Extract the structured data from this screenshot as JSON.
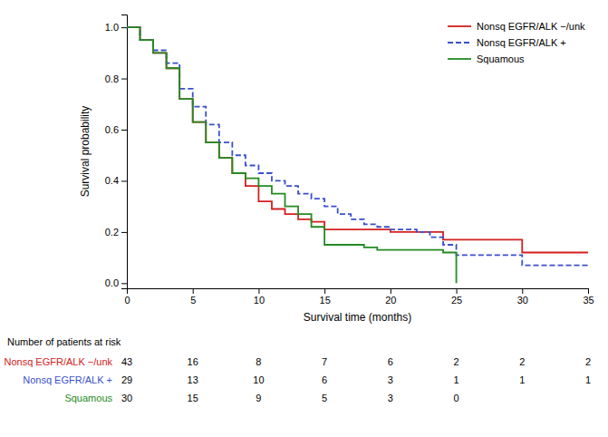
{
  "chart_data": {
    "type": "step",
    "xlabel": "Survival time (months)",
    "ylabel": "Survival probability",
    "xlim": [
      0,
      35
    ],
    "ylim": [
      -0.02,
      1.05
    ],
    "xticks": [
      0,
      5,
      10,
      15,
      20,
      25,
      30,
      35
    ],
    "yticks": [
      {
        "value": 0.0,
        "label": "0.0"
      },
      0.2,
      0.4,
      0.6,
      0.8,
      {
        "value": 1.0,
        "label": "1.0"
      }
    ],
    "grid": false,
    "legend": "upper right",
    "risk_label": "Number of patients at risk",
    "risk_times": [
      0,
      5,
      10,
      15,
      20,
      25,
      30,
      35
    ],
    "series": [
      {
        "name": "Nonsq EGFR/ALK −/unk",
        "color": "#d42020",
        "line_style": "solid",
        "x": [
          0,
          1,
          2,
          3,
          4,
          5,
          6,
          7,
          8,
          9,
          10,
          11,
          12,
          13,
          14,
          15,
          16,
          17,
          18,
          19,
          20,
          21,
          22,
          23,
          24,
          25,
          30,
          31,
          35
        ],
        "values": [
          1.0,
          0.95,
          0.9,
          0.84,
          0.72,
          0.63,
          0.55,
          0.49,
          0.43,
          0.38,
          0.32,
          0.29,
          0.27,
          0.25,
          0.24,
          0.21,
          0.21,
          0.21,
          0.21,
          0.21,
          0.2,
          0.2,
          0.2,
          0.2,
          0.17,
          0.17,
          0.12,
          0.12,
          0.12
        ],
        "at_risk": [
          43,
          16,
          8,
          7,
          6,
          2,
          2,
          2
        ]
      },
      {
        "name": "Nonsq EGFR/ALK +",
        "color": "#3a4fcd",
        "line_style": "dashed",
        "x": [
          0,
          1,
          2,
          3,
          4,
          5,
          6,
          7,
          8,
          9,
          10,
          11,
          12,
          13,
          14,
          15,
          16,
          17,
          18,
          19,
          20,
          21,
          22,
          23,
          24,
          25,
          30,
          35
        ],
        "values": [
          1.0,
          0.95,
          0.91,
          0.86,
          0.76,
          0.69,
          0.62,
          0.55,
          0.5,
          0.46,
          0.43,
          0.4,
          0.38,
          0.35,
          0.33,
          0.3,
          0.27,
          0.25,
          0.23,
          0.22,
          0.21,
          0.21,
          0.2,
          0.18,
          0.15,
          0.11,
          0.07,
          0.07
        ],
        "at_risk": [
          29,
          13,
          10,
          6,
          3,
          1,
          1,
          1
        ]
      },
      {
        "name": "Squamous",
        "color": "#228B22",
        "line_style": "solid",
        "x": [
          0,
          1,
          2,
          3,
          4,
          5,
          6,
          7,
          8,
          9,
          10,
          11,
          12,
          13,
          14,
          15,
          16,
          17,
          18,
          19,
          20,
          21,
          22,
          23,
          24,
          25
        ],
        "values": [
          1.0,
          0.95,
          0.9,
          0.84,
          0.72,
          0.63,
          0.55,
          0.49,
          0.43,
          0.41,
          0.38,
          0.35,
          0.3,
          0.27,
          0.22,
          0.15,
          0.15,
          0.15,
          0.14,
          0.13,
          0.13,
          0.13,
          0.13,
          0.13,
          0.12,
          0.0
        ],
        "at_risk": [
          30,
          15,
          9,
          5,
          3,
          0,
          null,
          null
        ]
      }
    ]
  }
}
